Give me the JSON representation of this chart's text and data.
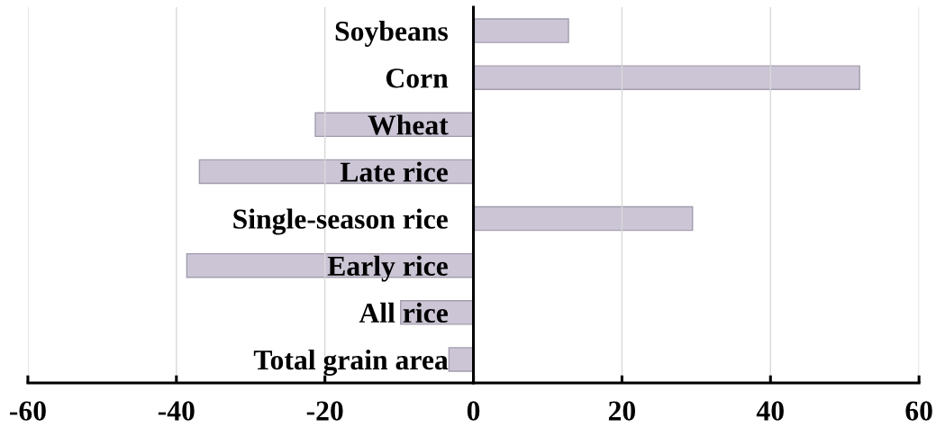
{
  "chart_data": {
    "type": "bar",
    "orientation": "horizontal",
    "categories": [
      "Soybeans",
      "Corn",
      "Wheat",
      "Late rice",
      "Single-season rice",
      "Early rice",
      "All rice",
      "Total grain area"
    ],
    "values": [
      12.8,
      52.0,
      -21.3,
      -36.9,
      29.5,
      -38.6,
      -9.8,
      -3.3
    ],
    "color": "#cbc5d5",
    "xlim": [
      -60,
      60
    ],
    "xticks": [
      -60,
      -40,
      -20,
      0,
      20,
      40,
      60
    ],
    "grid": "x"
  }
}
